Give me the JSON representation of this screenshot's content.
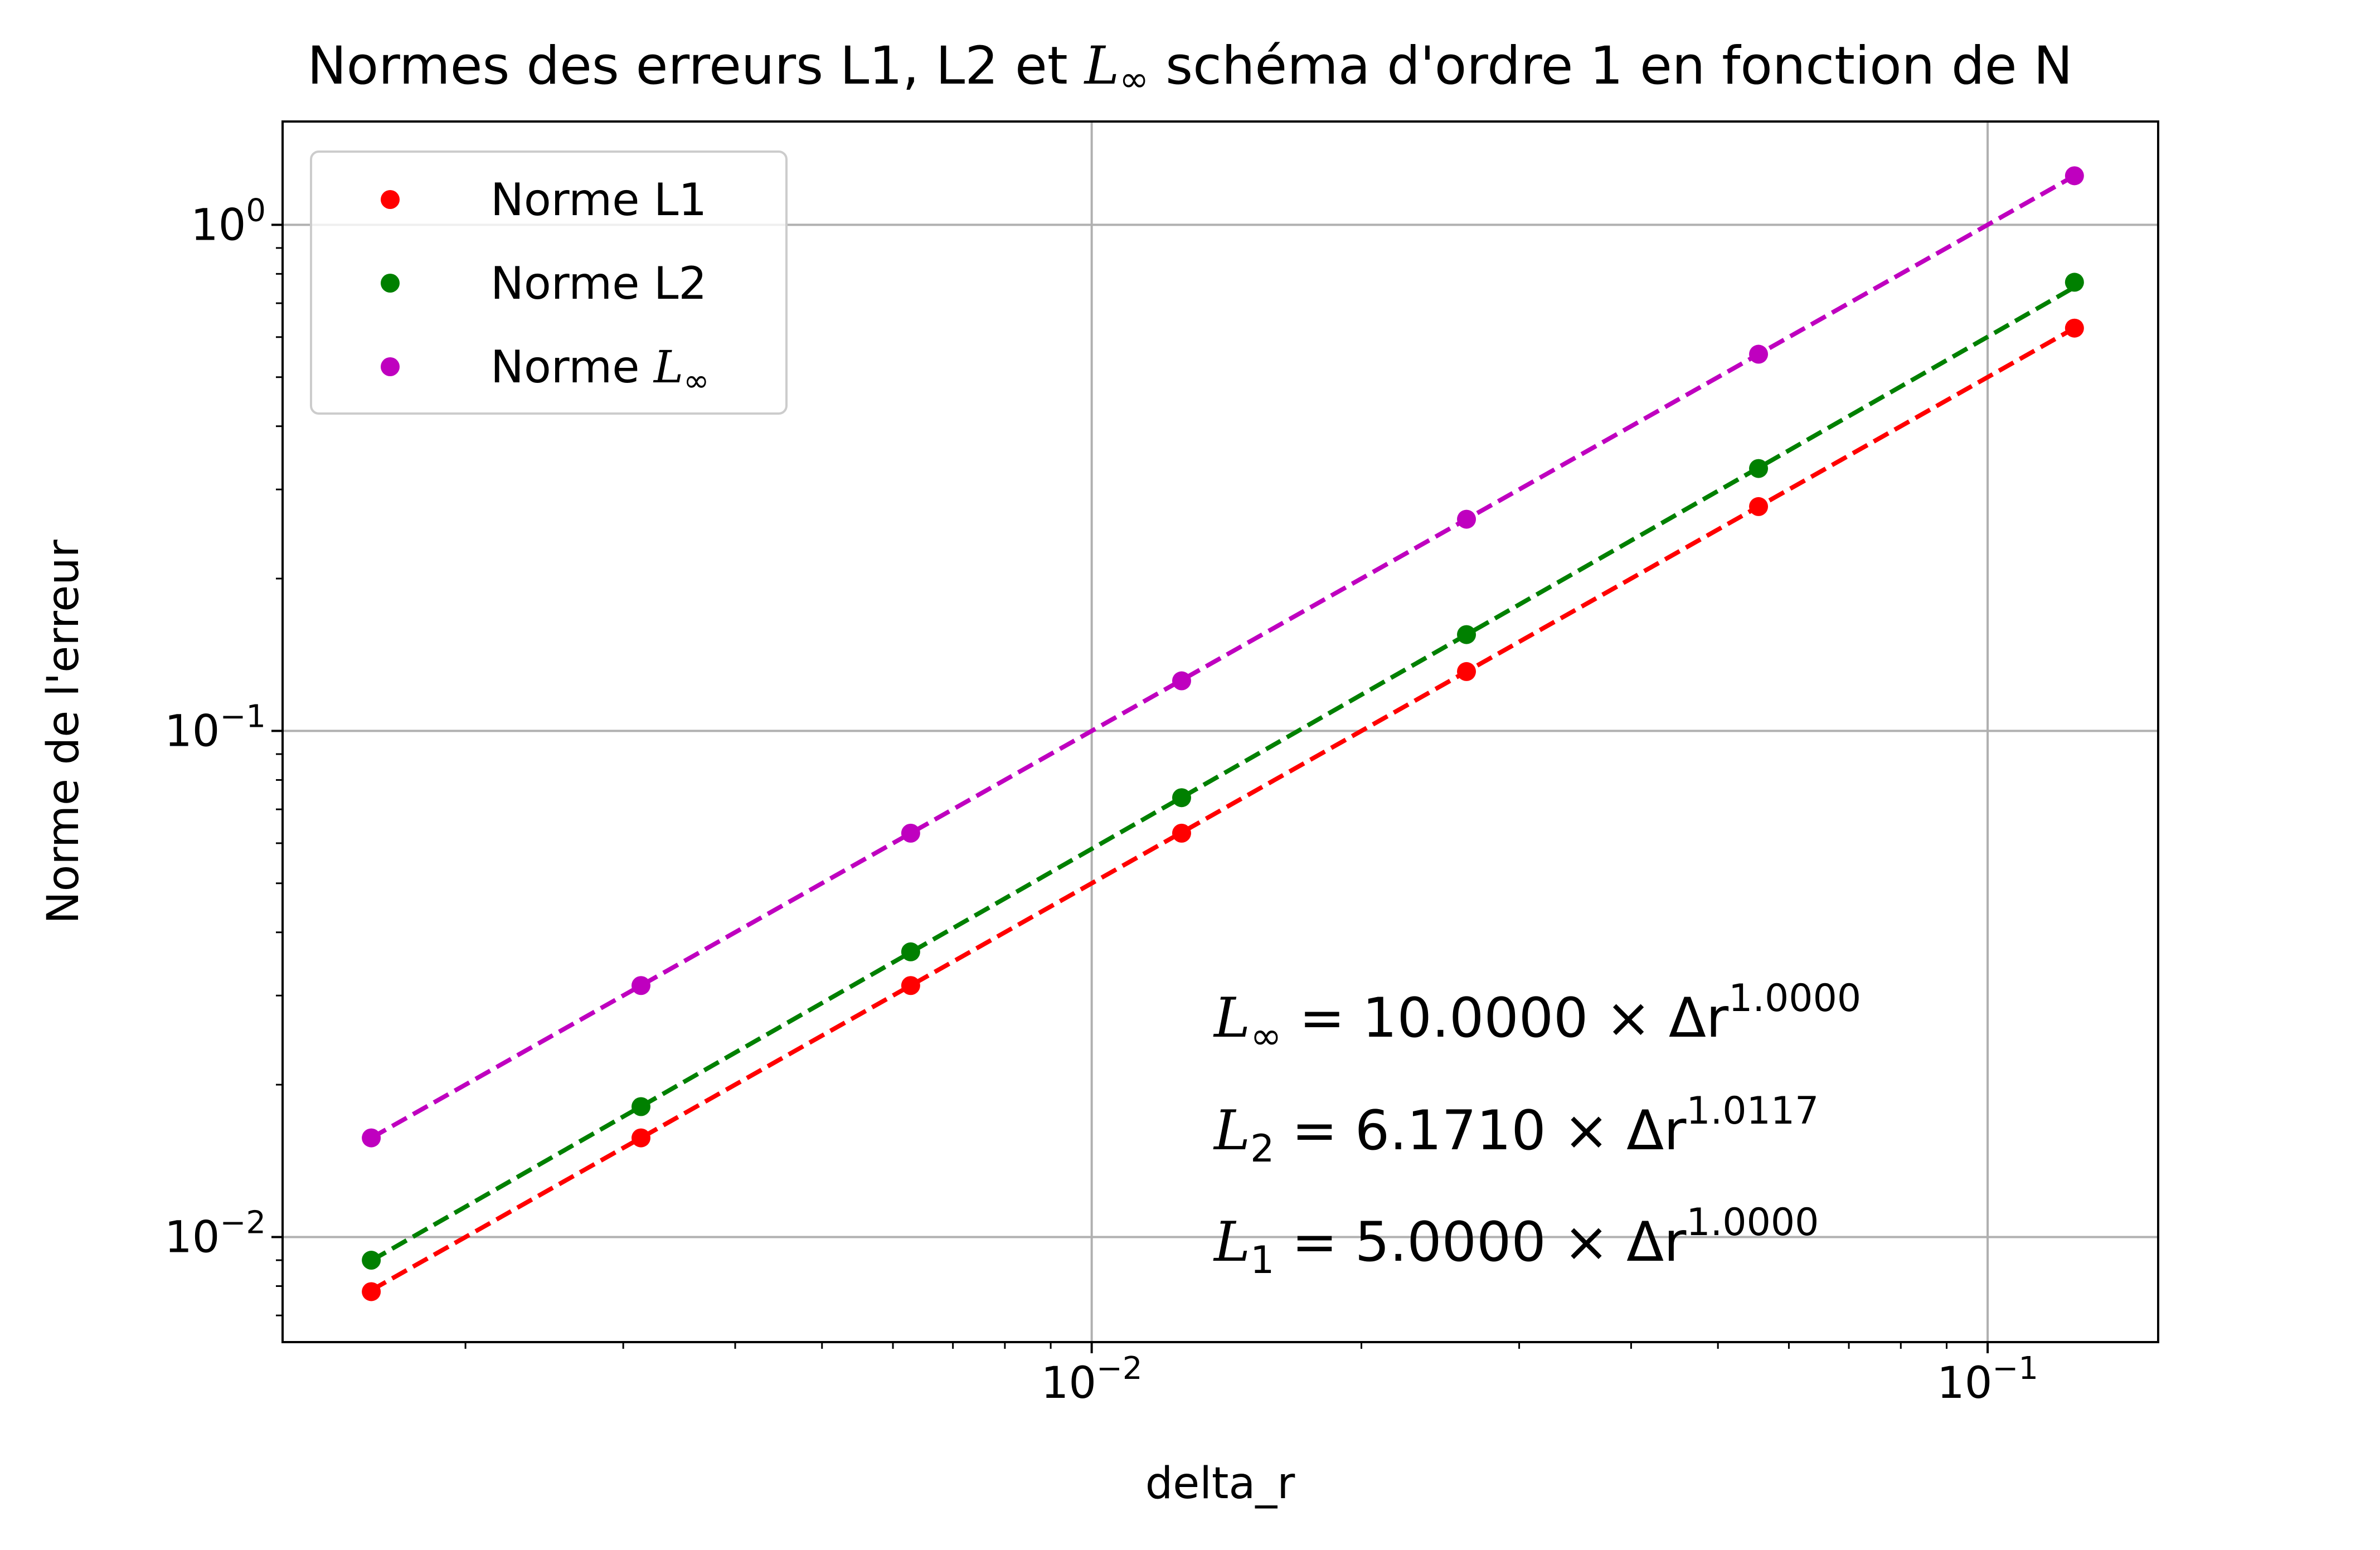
{
  "chart_data": {
    "type": "scatter",
    "title_pre": "Normes des erreurs L1, L2 et ",
    "title_sym": "L",
    "title_sub": "∞",
    "title_post": " schéma d'ordre 1 en fonction de N",
    "xlabel": "delta_r",
    "ylabel": "Norme de l'erreur",
    "xscale": "log",
    "yscale": "log",
    "xlim": [
      0.00125,
      0.155
    ],
    "ylim": [
      0.0062,
      1.6
    ],
    "grid": true,
    "legend_position": "top-left",
    "x_ticks": [
      {
        "value": 0.01,
        "base": "10",
        "exp": "−2"
      },
      {
        "value": 0.1,
        "base": "10",
        "exp": "−1"
      }
    ],
    "y_ticks": [
      {
        "value": 0.01,
        "base": "10",
        "exp": "−2"
      },
      {
        "value": 0.1,
        "base": "10",
        "exp": "−1"
      },
      {
        "value": 1,
        "base": "10",
        "exp": "0"
      }
    ],
    "x": [
      0.00157,
      0.00314,
      0.00628,
      0.0126,
      0.0262,
      0.0555,
      0.125
    ],
    "series": [
      {
        "name": "Norme L1",
        "name_main": "Norme L1",
        "name_sub": "",
        "color": "#ff0000",
        "values": [
          0.0078,
          0.0157,
          0.0314,
          0.0628,
          0.131,
          0.2775,
          0.625
        ],
        "fit": {
          "coef": 5.0,
          "exp": 1.0
        }
      },
      {
        "name": "Norme L2",
        "name_main": "Norme L2",
        "name_sub": "",
        "color": "#008000",
        "values": [
          0.009,
          0.0181,
          0.0366,
          0.0738,
          0.155,
          0.33,
          0.77
        ],
        "fit": {
          "coef": 6.171,
          "exp": 1.0117
        }
      },
      {
        "name": "Norme L∞",
        "name_main": "Norme L",
        "name_sub": "∞",
        "color": "#bf00bf",
        "values": [
          0.0157,
          0.0314,
          0.0628,
          0.1256,
          0.262,
          0.555,
          1.25
        ],
        "fit": {
          "coef": 10.0,
          "exp": 1.0
        }
      }
    ],
    "annotations": [
      {
        "sym": "L",
        "sub": "∞",
        "text": " = 10.0000 × Δr",
        "sup": "1.0000"
      },
      {
        "sym": "L",
        "sub": "2",
        "text": " = 6.1710 × Δr",
        "sup": "1.0117"
      },
      {
        "sym": "L",
        "sub": "1",
        "text": " = 5.0000 × Δr",
        "sup": "1.0000"
      }
    ]
  }
}
